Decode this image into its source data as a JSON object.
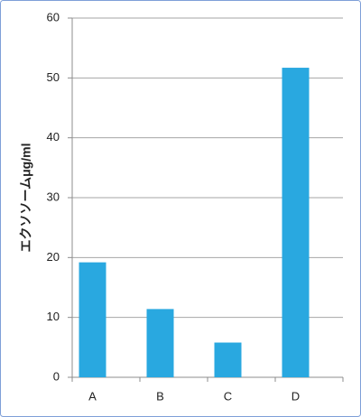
{
  "chart_data": {
    "type": "bar",
    "ylabel": "エクソソームμg/ml",
    "categories": [
      "A",
      "B",
      "C",
      "D"
    ],
    "values": [
      19.2,
      11.4,
      5.8,
      51.7
    ],
    "color": "#29a8e0",
    "ylim": [
      0,
      60
    ],
    "yticks": [
      0,
      10,
      20,
      30,
      40,
      50,
      60
    ],
    "grid": true
  }
}
